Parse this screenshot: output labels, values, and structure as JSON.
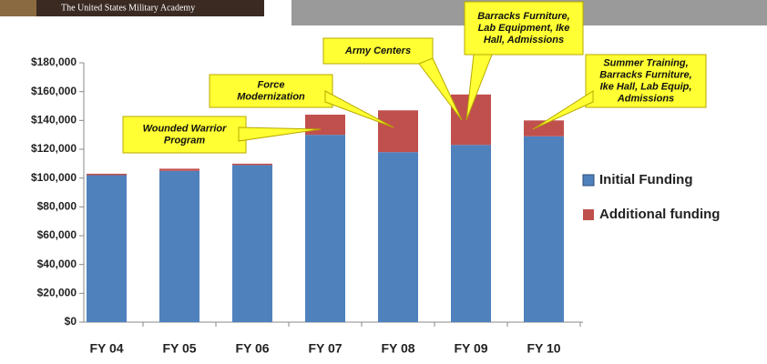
{
  "header": {
    "text": "The United States Military Academy"
  },
  "chart_data": {
    "type": "stacked_bar",
    "categories": [
      "FY 04",
      "FY 05",
      "FY 06",
      "FY 07",
      "FY 08",
      "FY 09",
      "FY 10"
    ],
    "series": [
      {
        "name": "Initial Funding",
        "color": "#4f81bd",
        "values": [
          102000,
          105000,
          109000,
          130000,
          118000,
          123000,
          129000
        ]
      },
      {
        "name": "Additional funding",
        "color": "#c0504d",
        "values": [
          1000,
          1500,
          1000,
          14000,
          29000,
          35000,
          11000
        ]
      }
    ],
    "ylim": [
      0,
      180000
    ],
    "yticks": [
      {
        "value": 0,
        "label": "$0"
      },
      {
        "value": 20000,
        "label": "$20,000"
      },
      {
        "value": 40000,
        "label": "$40,000"
      },
      {
        "value": 60000,
        "label": "$60,000"
      },
      {
        "value": 80000,
        "label": "$80,000"
      },
      {
        "value": 100000,
        "label": "$100,000"
      },
      {
        "value": 120000,
        "label": "$120,000"
      },
      {
        "value": 140000,
        "label": "$140,000"
      },
      {
        "value": 160000,
        "label": "$160,000"
      },
      {
        "value": 180000,
        "label": "$180,000"
      }
    ],
    "grid": false,
    "legend": "right",
    "annotations": [
      {
        "lines": [
          "Wounded Warrior",
          "Program"
        ]
      },
      {
        "lines": [
          "Force",
          "Modernization"
        ]
      },
      {
        "lines": [
          "Army Centers"
        ]
      },
      {
        "lines": [
          "Barracks Furniture,",
          "Lab Equipment, Ike",
          "Hall, Admissions"
        ]
      },
      {
        "lines": [
          "Summer Training,",
          "Barracks Furniture,",
          "Ike Hall, Lab Equip,",
          "Admissions"
        ]
      }
    ]
  }
}
